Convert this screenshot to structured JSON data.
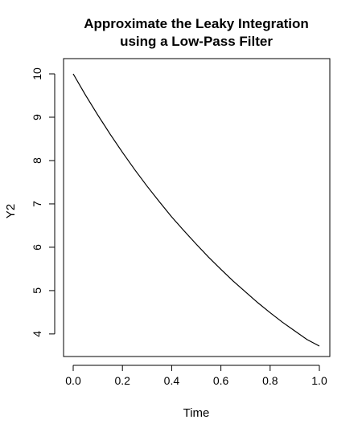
{
  "chart_data": {
    "type": "line",
    "title_line1": "Approximate the Leaky Integration",
    "title_line2": "using a Low-Pass Filter",
    "xlabel": "Time",
    "ylabel": "Y2",
    "xlim": [
      0.0,
      1.0
    ],
    "ylim": [
      3.72,
      10.0
    ],
    "x_ticks": [
      "0.0",
      "0.2",
      "0.4",
      "0.6",
      "0.8",
      "1.0"
    ],
    "y_ticks": [
      "4",
      "5",
      "6",
      "7",
      "8",
      "9",
      "10"
    ],
    "series": [
      {
        "x": [
          0.0,
          0.05,
          0.1,
          0.15,
          0.2,
          0.25,
          0.3,
          0.35,
          0.4,
          0.45,
          0.5,
          0.55,
          0.6,
          0.65,
          0.7,
          0.75,
          0.8,
          0.85,
          0.9,
          0.95,
          1.0
        ],
        "y": [
          10.0,
          9.51,
          9.05,
          8.61,
          8.19,
          7.79,
          7.41,
          7.05,
          6.7,
          6.38,
          6.07,
          5.77,
          5.49,
          5.22,
          4.97,
          4.72,
          4.49,
          4.27,
          4.07,
          3.87,
          3.72
        ]
      }
    ]
  }
}
